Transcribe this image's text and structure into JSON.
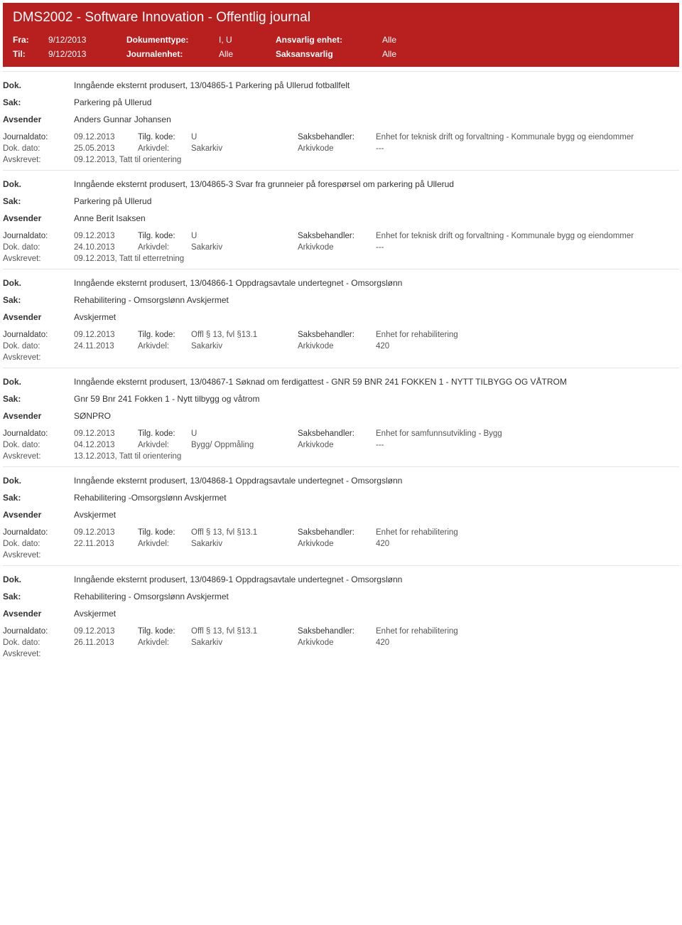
{
  "header": {
    "title": "DMS2002 - Software Innovation - Offentlig journal",
    "fra_label": "Fra:",
    "fra_value": "9/12/2013",
    "til_label": "Til:",
    "til_value": "9/12/2013",
    "doktype_label": "Dokumenttype:",
    "doktype_value": "I, U",
    "journalenhet_label": "Journalenhet:",
    "journalenhet_value": "Alle",
    "ansvarlig_label": "Ansvarlig enhet:",
    "ansvarlig_value": "Alle",
    "saksansvarlig_label": "Saksansvarlig",
    "saksansvarlig_value": "Alle"
  },
  "labels": {
    "dok": "Dok.",
    "sak": "Sak:",
    "avsender": "Avsender",
    "journaldato": "Journaldato:",
    "tilgkode": "Tilg. kode:",
    "saksbehandler": "Saksbehandler:",
    "dokdato": "Dok. dato:",
    "arkivdel": "Arkivdel:",
    "arkivkode": "Arkivkode",
    "avskrevet": "Avskrevet:"
  },
  "entries": [
    {
      "dok": "Inngående eksternt produsert, 13/04865-1 Parkering på Ullerud fotballfelt",
      "sak": "Parkering på Ullerud",
      "avsender": "Anders Gunnar Johansen",
      "journaldato": "09.12.2013",
      "tilgkode": "U",
      "saksbehandler": "Enhet for teknisk drift og forvaltning - Kommunale bygg og eiendommer",
      "dokdato": "25.05.2013",
      "arkivdel": "Sakarkiv",
      "arkivkode": "---",
      "avskrevet": "09.12.2013, Tatt til orientering"
    },
    {
      "dok": "Inngående eksternt produsert, 13/04865-3 Svar fra grunneier på forespørsel om parkering på Ullerud",
      "sak": "Parkering på Ullerud",
      "avsender": "Anne Berit Isaksen",
      "journaldato": "09.12.2013",
      "tilgkode": "U",
      "saksbehandler": "Enhet for teknisk drift og forvaltning - Kommunale bygg og eiendommer",
      "dokdato": "24.10.2013",
      "arkivdel": "Sakarkiv",
      "arkivkode": "---",
      "avskrevet": "09.12.2013, Tatt til etterretning"
    },
    {
      "dok": "Inngående eksternt produsert, 13/04866-1 Oppdragsavtale undertegnet  - Omsorgslønn",
      "sak": "Rehabilitering - Omsorgslønn Avskjermet",
      "avsender": "Avskjermet",
      "journaldato": "09.12.2013",
      "tilgkode": "Offl § 13, fvl §13.1",
      "saksbehandler": "Enhet for rehabilitering",
      "dokdato": "24.11.2013",
      "arkivdel": "Sakarkiv",
      "arkivkode": "420",
      "avskrevet": ""
    },
    {
      "dok": "Inngående eksternt produsert, 13/04867-1 Søknad om ferdigattest -  GNR 59 BNR 241 FOKKEN 1 - NYTT TILBYGG OG VÅTROM",
      "sak": "Gnr 59 Bnr 241 Fokken 1 - Nytt tilbygg og våtrom",
      "avsender": "SØNPRO",
      "journaldato": "09.12.2013",
      "tilgkode": "U",
      "saksbehandler": "Enhet for samfunnsutvikling - Bygg",
      "dokdato": "04.12.2013",
      "arkivdel": "Bygg/ Oppmåling",
      "arkivkode": "---",
      "avskrevet": "13.12.2013, Tatt til orientering"
    },
    {
      "dok": "Inngående eksternt produsert, 13/04868-1 Oppdragsavtale undertegnet - Omsorgslønn",
      "sak": "Rehabilitering  -Omsorgslønn Avskjermet",
      "avsender": "Avskjermet",
      "journaldato": "09.12.2013",
      "tilgkode": "Offl § 13, fvl §13.1",
      "saksbehandler": "Enhet for rehabilitering",
      "dokdato": "22.11.2013",
      "arkivdel": "Sakarkiv",
      "arkivkode": "420",
      "avskrevet": ""
    },
    {
      "dok": "Inngående eksternt produsert, 13/04869-1 Oppdragsavtale undertegnet - Omsorgslønn",
      "sak": "Rehabilitering - Omsorgslønn Avskjermet",
      "avsender": "Avskjermet",
      "journaldato": "09.12.2013",
      "tilgkode": "Offl § 13, fvl §13.1",
      "saksbehandler": "Enhet for rehabilitering",
      "dokdato": "26.11.2013",
      "arkivdel": "Sakarkiv",
      "arkivkode": "420",
      "avskrevet": ""
    }
  ]
}
